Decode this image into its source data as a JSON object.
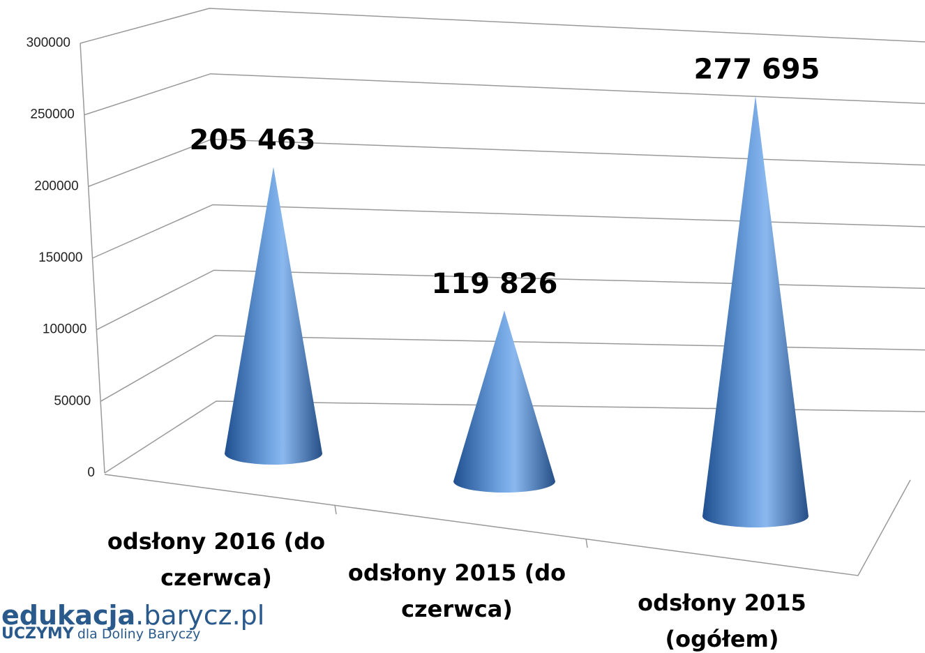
{
  "chart_data": {
    "type": "cone3d",
    "categories": [
      "odsłony 2016 (do czerwca)",
      "odsłony 2015 (do czerwca)",
      "odsłony 2015 (ogółem)"
    ],
    "values": [
      205463,
      119826,
      277695
    ],
    "value_labels": [
      "205 463",
      "119 826",
      "277 695"
    ],
    "color": "#4f81bd",
    "ylim": [
      0,
      300000
    ],
    "yticks": [
      0,
      50000,
      100000,
      150000,
      200000,
      250000,
      300000
    ],
    "grid": true
  },
  "logo": {
    "brand": "edukacja",
    "domain": ".barycz.pl",
    "tagline_bold": "UCZYMY",
    "tagline": "dla Doliny Baryczy"
  }
}
